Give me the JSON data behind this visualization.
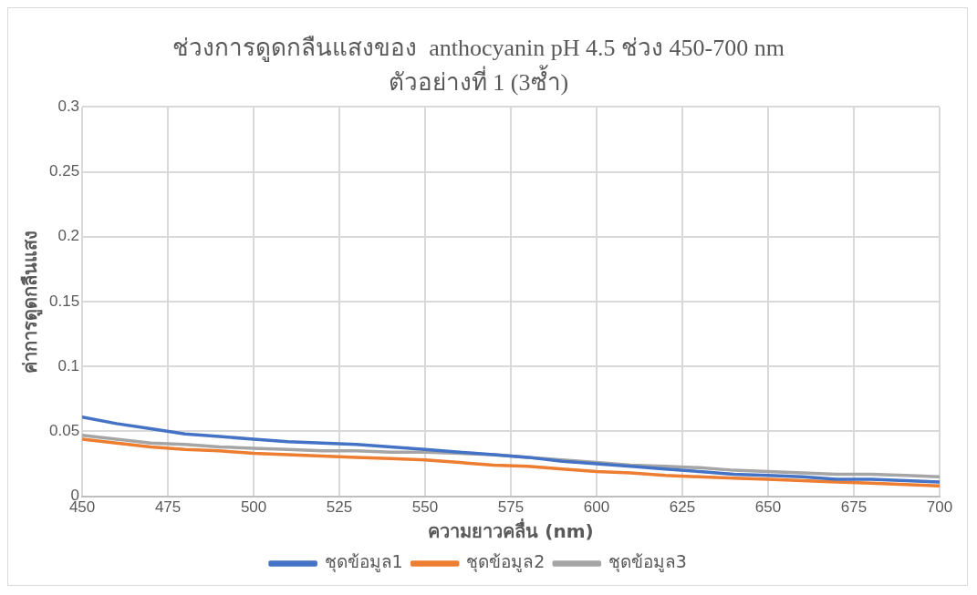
{
  "chart_data": {
    "type": "line",
    "title": "ช่วงการดูดกลืนแสงของ  anthocyanin pH 4.5 ช่วง 450-700 nm",
    "subtitle": "ตัวอย่างที่ 1 (3ซ้ำ)",
    "xlabel": "ความยาวคลื่น (nm)",
    "ylabel": "ค่าการดูดกลืนแสง",
    "x": [
      450,
      460,
      470,
      480,
      490,
      500,
      510,
      520,
      530,
      540,
      550,
      560,
      570,
      580,
      590,
      600,
      610,
      620,
      630,
      640,
      650,
      660,
      670,
      680,
      690,
      700
    ],
    "series": [
      {
        "name": "ชุดข้อมูล1",
        "color": "#4472c4",
        "values": [
          0.061,
          0.056,
          0.052,
          0.048,
          0.046,
          0.044,
          0.042,
          0.041,
          0.04,
          0.038,
          0.036,
          0.034,
          0.032,
          0.03,
          0.027,
          0.025,
          0.023,
          0.021,
          0.019,
          0.017,
          0.016,
          0.015,
          0.013,
          0.013,
          0.012,
          0.011
        ]
      },
      {
        "name": "ชุดข้อมูล2",
        "color": "#ed7d31",
        "values": [
          0.044,
          0.041,
          0.038,
          0.036,
          0.035,
          0.033,
          0.032,
          0.031,
          0.03,
          0.029,
          0.028,
          0.026,
          0.024,
          0.023,
          0.021,
          0.019,
          0.018,
          0.016,
          0.015,
          0.014,
          0.013,
          0.012,
          0.011,
          0.01,
          0.009,
          0.008
        ]
      },
      {
        "name": "ชุดข้อมูล3",
        "color": "#a5a5a5",
        "values": [
          0.047,
          0.044,
          0.041,
          0.04,
          0.038,
          0.037,
          0.036,
          0.035,
          0.035,
          0.034,
          0.034,
          0.033,
          0.032,
          0.03,
          0.028,
          0.026,
          0.024,
          0.023,
          0.022,
          0.02,
          0.019,
          0.018,
          0.017,
          0.017,
          0.016,
          0.015
        ]
      }
    ],
    "xlim": [
      450,
      700
    ],
    "xticks": [
      450,
      475,
      500,
      525,
      550,
      575,
      600,
      625,
      650,
      675,
      700
    ],
    "ylim": [
      0,
      0.3
    ],
    "yticks": [
      0,
      0.05,
      0.1,
      0.15,
      0.2,
      0.25,
      0.3
    ],
    "grid": true,
    "legend": "bottom",
    "marker": "none",
    "line_style": "solid"
  }
}
